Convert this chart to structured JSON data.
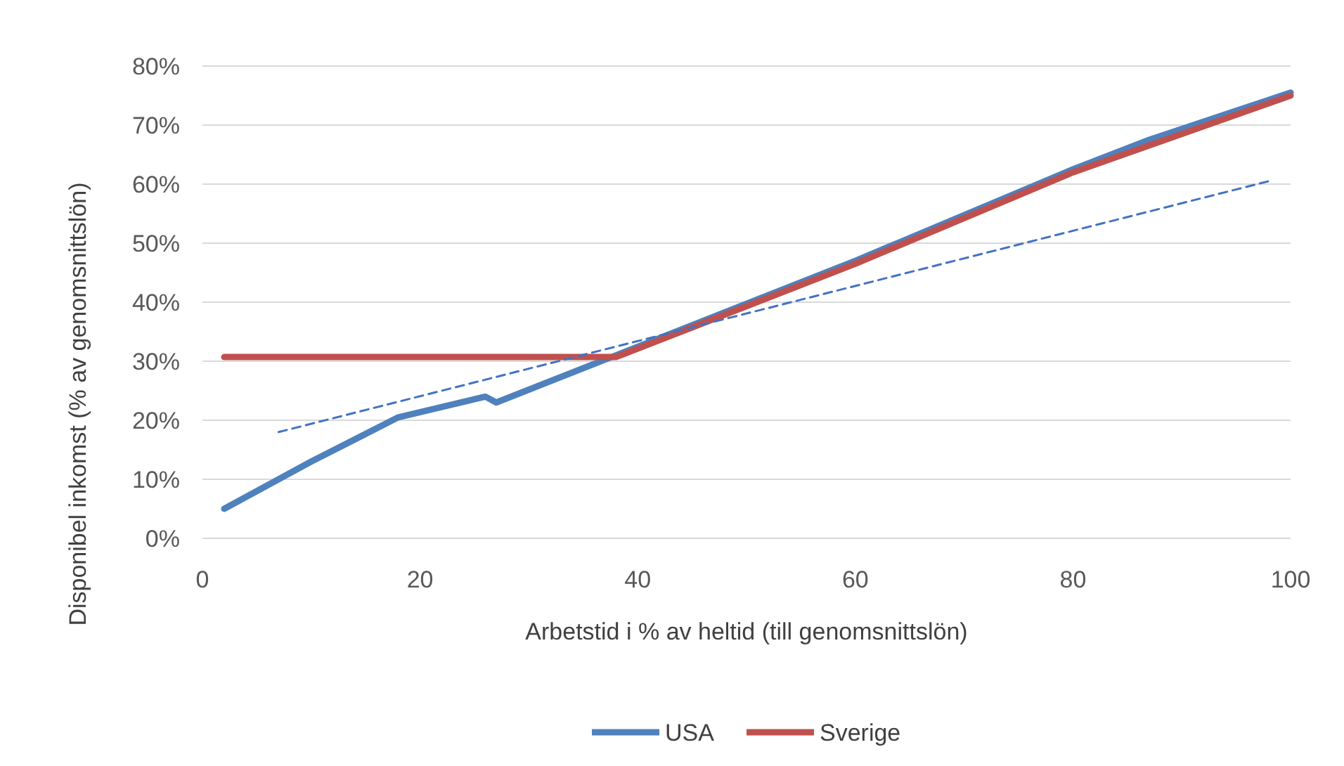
{
  "chart_data": {
    "type": "line",
    "xlabel": "Arbetstid i % av heltid (till genomsnittslön)",
    "ylabel": "Disponibel inkomst (% av genomsnittslön)",
    "xlim": [
      0,
      100
    ],
    "xticks": [
      0,
      20,
      40,
      60,
      80,
      100
    ],
    "ylim": [
      0,
      80
    ],
    "yticks": [
      {
        "value": 0,
        "label": "0%"
      },
      {
        "value": 10,
        "label": "10%"
      },
      {
        "value": 20,
        "label": "20%"
      },
      {
        "value": 30,
        "label": "30%"
      },
      {
        "value": 40,
        "label": "40%"
      },
      {
        "value": 50,
        "label": "50%"
      },
      {
        "value": 60,
        "label": "60%"
      },
      {
        "value": 70,
        "label": "70%"
      },
      {
        "value": 80,
        "label": "80%"
      }
    ],
    "grid": "y",
    "legend": "bottom",
    "marker": "none",
    "series": [
      {
        "name": "USA",
        "color": "#4f81bd",
        "x": [
          2,
          10,
          18,
          26,
          27,
          38,
          60,
          80,
          87,
          100
        ],
        "values": [
          5,
          13,
          20.5,
          24,
          23,
          31,
          47,
          62.5,
          67.5,
          75.5
        ]
      },
      {
        "name": "Sverige",
        "color": "#c0504d",
        "x": [
          2,
          38,
          60,
          80,
          100
        ],
        "values": [
          30.7,
          30.7,
          46.5,
          62,
          75
        ]
      },
      {
        "color": "#4472c4",
        "line_style": "dashed",
        "x": [
          7,
          98
        ],
        "values": [
          18,
          60.5
        ]
      }
    ]
  }
}
